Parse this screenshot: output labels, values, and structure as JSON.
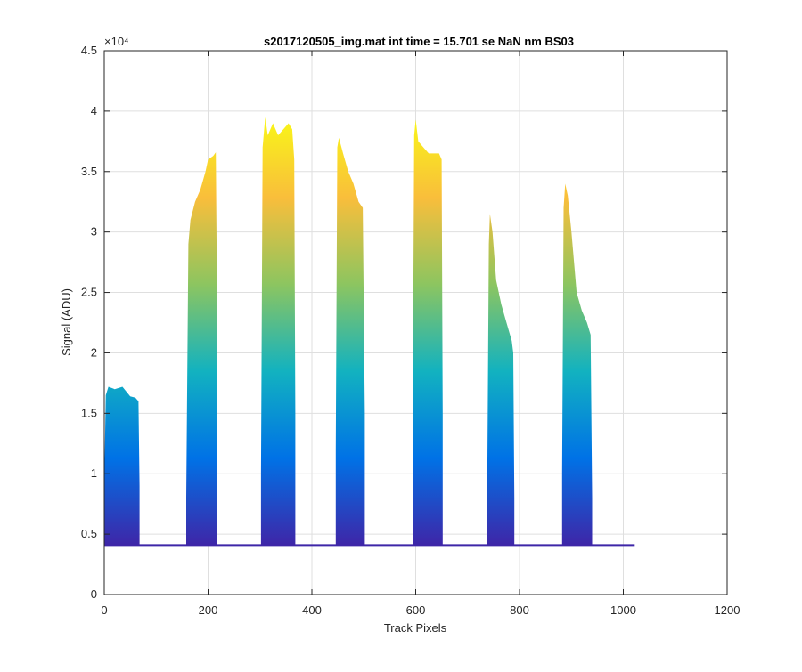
{
  "chart_data": {
    "type": "area",
    "title": "s2017120505_img.mat int time = 15.701 se  NaN nm BS03",
    "xlabel": "Track Pixels",
    "ylabel": "Signal (ADU)",
    "xlim": [
      0,
      1200
    ],
    "ylim": [
      0,
      45000
    ],
    "x_ticks": [
      0,
      200,
      400,
      600,
      800,
      1000,
      1200
    ],
    "x_tick_labels": [
      "0",
      "200",
      "400",
      "600",
      "800",
      "1000",
      "1200"
    ],
    "y_ticks": [
      0,
      5000,
      10000,
      15000,
      20000,
      25000,
      30000,
      35000,
      40000,
      45000
    ],
    "y_tick_labels": [
      "0",
      "0.5",
      "1",
      "1.5",
      "2",
      "2.5",
      "3",
      "3.5",
      "4",
      "4.5"
    ],
    "y_exponent_label": "×10⁴",
    "grid": true,
    "baseline": 4100,
    "track_end": 1022,
    "colormap": [
      "#3e26a8",
      "#0072e6",
      "#12b2c0",
      "#8cc560",
      "#f9be3b",
      "#f9fb15"
    ],
    "grid_color": "#dfdfdf",
    "axis_color": "#262626",
    "fibers": [
      {
        "x_start": 0,
        "x_end": 68,
        "peak_profile": [
          [
            0,
            9000
          ],
          [
            3,
            16500
          ],
          [
            8,
            17200
          ],
          [
            20,
            17000
          ],
          [
            35,
            17200
          ],
          [
            50,
            16400
          ],
          [
            60,
            16300
          ],
          [
            66,
            16000
          ],
          [
            68,
            9000
          ]
        ]
      },
      {
        "x_start": 158,
        "x_end": 218,
        "peak_profile": [
          [
            158,
            8000
          ],
          [
            162,
            29000
          ],
          [
            166,
            31000
          ],
          [
            175,
            32500
          ],
          [
            185,
            33500
          ],
          [
            195,
            35000
          ],
          [
            200,
            36000
          ],
          [
            210,
            36300
          ],
          [
            215,
            36600
          ],
          [
            218,
            20000
          ]
        ]
      },
      {
        "x_start": 302,
        "x_end": 368,
        "peak_profile": [
          [
            302,
            10000
          ],
          [
            305,
            37000
          ],
          [
            310,
            39500
          ],
          [
            315,
            38000
          ],
          [
            325,
            39000
          ],
          [
            335,
            38000
          ],
          [
            345,
            38500
          ],
          [
            355,
            39000
          ],
          [
            362,
            38500
          ],
          [
            366,
            36000
          ],
          [
            368,
            15000
          ]
        ]
      },
      {
        "x_start": 446,
        "x_end": 502,
        "peak_profile": [
          [
            446,
            12000
          ],
          [
            449,
            37000
          ],
          [
            452,
            37800
          ],
          [
            460,
            36500
          ],
          [
            470,
            35000
          ],
          [
            480,
            34000
          ],
          [
            490,
            32500
          ],
          [
            498,
            32000
          ],
          [
            502,
            15000
          ]
        ]
      },
      {
        "x_start": 594,
        "x_end": 652,
        "peak_profile": [
          [
            594,
            12000
          ],
          [
            597,
            38000
          ],
          [
            600,
            39300
          ],
          [
            605,
            37500
          ],
          [
            615,
            37000
          ],
          [
            625,
            36500
          ],
          [
            635,
            36500
          ],
          [
            645,
            36500
          ],
          [
            650,
            36000
          ],
          [
            652,
            15000
          ]
        ]
      },
      {
        "x_start": 738,
        "x_end": 790,
        "peak_profile": [
          [
            738,
            10000
          ],
          [
            741,
            29000
          ],
          [
            743,
            31500
          ],
          [
            748,
            30000
          ],
          [
            755,
            26000
          ],
          [
            765,
            24000
          ],
          [
            775,
            22500
          ],
          [
            785,
            21000
          ],
          [
            788,
            20000
          ],
          [
            790,
            8000
          ]
        ]
      },
      {
        "x_start": 882,
        "x_end": 940,
        "peak_profile": [
          [
            882,
            10000
          ],
          [
            885,
            32000
          ],
          [
            888,
            34000
          ],
          [
            893,
            33000
          ],
          [
            900,
            30000
          ],
          [
            910,
            25000
          ],
          [
            920,
            23500
          ],
          [
            930,
            22500
          ],
          [
            937,
            21500
          ],
          [
            940,
            8000
          ]
        ]
      }
    ]
  }
}
